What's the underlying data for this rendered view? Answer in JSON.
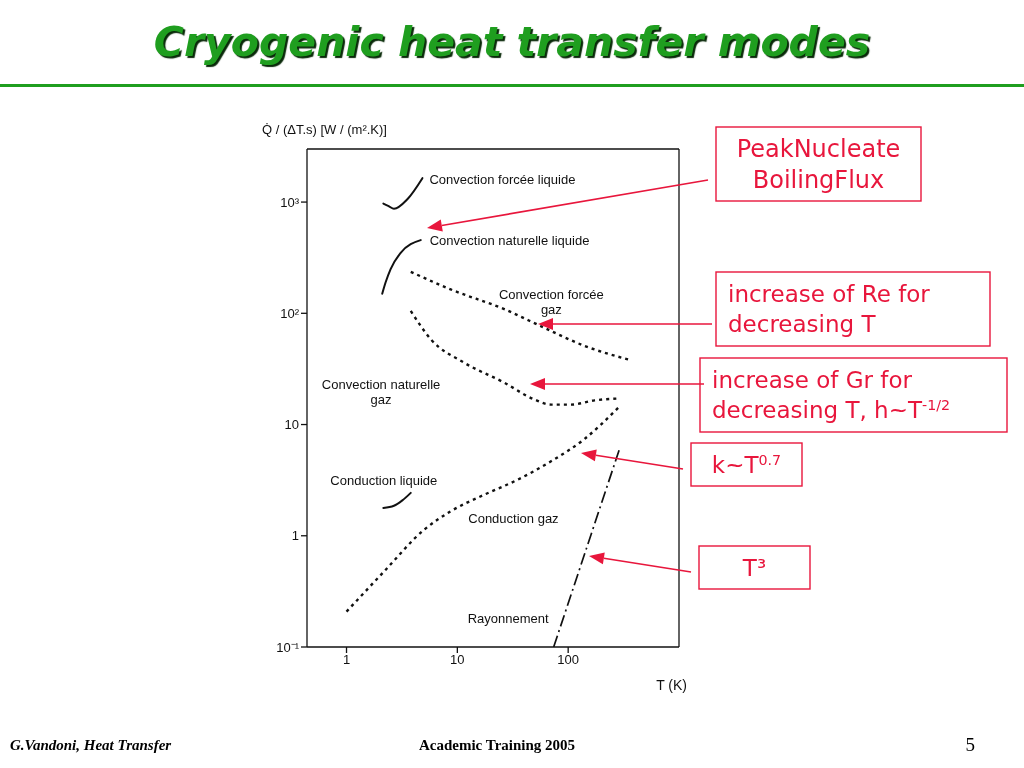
{
  "chart_data": {
    "type": "line",
    "title": "Cryogenic heat transfer modes",
    "xlabel": "T (K)",
    "ylabel": "Q̇ / (ΔT.s)  [W / (m².K)]",
    "log": "xy",
    "xlim": [
      0.44,
      1000
    ],
    "xticks": [
      1,
      10,
      100
    ],
    "ylim": [
      0.1,
      3000
    ],
    "yticks": [
      {
        "value": 0.1,
        "label": "10⁻¹"
      },
      1,
      10,
      {
        "value": 100,
        "label": "10²"
      },
      {
        "value": 1000,
        "label": "10³"
      }
    ],
    "series": [
      {
        "name": "Convection forcée liquide",
        "color": "#111111",
        "line_style": "solid",
        "x": [
          2.15,
          2.4,
          2.68,
          3.54,
          4.84
        ],
        "values": [
          970,
          920,
          870,
          1060,
          1640
        ]
      },
      {
        "name": "Convection naturelle liquide",
        "color": "#111111",
        "line_style": "solid",
        "x": [
          2.1,
          2.25,
          2.5,
          3.08,
          4.67
        ],
        "values": [
          150,
          189,
          250,
          350,
          455
        ]
      },
      {
        "name": "Convection forcée gaz",
        "color": "#111111",
        "line_style": "dotted",
        "x": [
          3.8,
          8.7,
          26.5,
          61,
          140,
          347
        ],
        "values": [
          236,
          164,
          109,
          74,
          51,
          38.5
        ]
      },
      {
        "name": "Convection naturelle gaz",
        "color": "#111111",
        "line_style": "dotted",
        "x": [
          3.8,
          5.8,
          11.5,
          26.5,
          49.5,
          70,
          106,
          173,
          272
        ],
        "values": [
          105,
          58,
          36,
          23.8,
          16.8,
          15.1,
          15.1,
          16.5,
          17.1
        ]
      },
      {
        "name": "Conduction liquide",
        "color": "#111111",
        "line_style": "solid",
        "x": [
          2.15,
          2.68,
          3.19,
          3.8
        ],
        "values": [
          1.78,
          1.86,
          2.08,
          2.43
        ]
      },
      {
        "name": "Conduction gaz",
        "color": "#111111",
        "line_style": "dotted",
        "x": [
          1,
          2.18,
          5,
          8.7,
          17.5,
          35,
          70,
          140,
          282
        ],
        "values": [
          0.208,
          0.477,
          1.13,
          1.66,
          2.34,
          3.19,
          4.67,
          7.4,
          14.1
        ]
      },
      {
        "name": "Rayonnement",
        "color": "#111111",
        "line_style": "dashdot",
        "x": [
          74,
          288
        ],
        "values": [
          0.1,
          5.87
        ]
      }
    ],
    "annotations": [
      "PeakNucleate BoilingFlux",
      "increase of Re for decreasing T",
      "increase of Gr for decreasing T, h~T$^{-1/2}$",
      "k~T$^{0.7}$",
      "T³",
      "G.Vandoni, Heat Transfer",
      "Academic Training 2005",
      "5"
    ]
  }
}
